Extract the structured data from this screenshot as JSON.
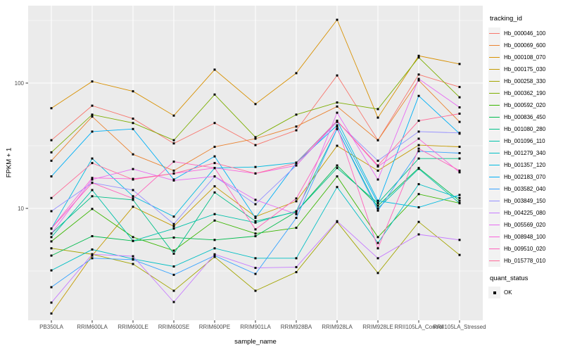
{
  "chart_data": {
    "type": "line",
    "title": "",
    "xlabel": "sample_name",
    "ylabel": "FPKM + 1",
    "y_scale": "log10",
    "ylim": [
      1.3,
      415
    ],
    "y_tick_labels": [
      "100",
      "10"
    ],
    "y_tick_values": [
      100,
      10
    ],
    "grid": true,
    "legend_position": "right",
    "categories": [
      "PB350LA",
      "RRIM600LA",
      "RRIM600LE",
      "RRIM600SE",
      "RRIM600PE",
      "RRIM901LA",
      "RRIM928BA",
      "RRIM928LA",
      "RRIM928LE",
      "RRII105LA_Control",
      "RRII105LA_Stressed"
    ],
    "series": [
      {
        "name": "Hb_000046_100",
        "color": "#F8766D",
        "values": [
          35,
          66,
          52,
          33,
          48,
          32,
          42,
          115,
          35,
          117,
          93
        ]
      },
      {
        "name": "Hb_000069_600",
        "color": "#EA8331",
        "values": [
          24,
          54,
          27,
          20,
          31,
          36,
          45,
          65,
          35,
          105,
          49
        ]
      },
      {
        "name": "Hb_000108_070",
        "color": "#D89000",
        "values": [
          63,
          103,
          86,
          55,
          128,
          68,
          120,
          320,
          53,
          165,
          142
        ]
      },
      {
        "name": "Hb_000175_030",
        "color": "#C49A00",
        "values": [
          1.45,
          4.2,
          10.3,
          7.2,
          15,
          8.6,
          11.4,
          31.6,
          20,
          32,
          31
        ]
      },
      {
        "name": "Hb_000258_330",
        "color": "#A3A500",
        "values": [
          4.8,
          4.3,
          3.6,
          2.2,
          4.1,
          2.2,
          3.1,
          7.8,
          3.05,
          7.8,
          4.25
        ]
      },
      {
        "name": "Hb_000362_190",
        "color": "#7CAE00",
        "values": [
          28,
          56,
          48,
          35,
          81,
          37,
          56,
          70,
          62,
          160,
          77
        ]
      },
      {
        "name": "Hb_000592_020",
        "color": "#39B600",
        "values": [
          5.45,
          9.9,
          5.9,
          4.6,
          8,
          6.3,
          7,
          18,
          5.9,
          13,
          11
        ]
      },
      {
        "name": "Hb_000836_450",
        "color": "#00BB4E",
        "values": [
          4.2,
          6,
          5.5,
          5.85,
          5.6,
          6,
          9.4,
          22,
          10.5,
          21,
          11.5
        ]
      },
      {
        "name": "Hb_001080_280",
        "color": "#00C087",
        "values": [
          6.3,
          12.5,
          11.7,
          4.35,
          13.4,
          7.9,
          9.4,
          21,
          11,
          25,
          25
        ]
      },
      {
        "name": "Hb_001096_110",
        "color": "#00C1A9",
        "values": [
          5.9,
          14,
          5.5,
          6.9,
          9,
          7.7,
          9.5,
          43,
          10,
          20.7,
          11
        ]
      },
      {
        "name": "Hb_001279_340",
        "color": "#00BFC4",
        "values": [
          3.2,
          4.7,
          3.95,
          3.44,
          4.8,
          4,
          4,
          14.8,
          5.3,
          15.6,
          12.1
        ]
      },
      {
        "name": "Hb_001357_120",
        "color": "#00BAE0",
        "values": [
          6.9,
          25,
          12.5,
          8.6,
          21,
          21.4,
          23.2,
          50,
          11.5,
          10.2,
          12.8
        ]
      },
      {
        "name": "Hb_002183_070",
        "color": "#00B0F6",
        "values": [
          18,
          41,
          43,
          17,
          26,
          8.4,
          23,
          46,
          11,
          79,
          39.5
        ]
      },
      {
        "name": "Hb_003582_040",
        "color": "#35A2FF",
        "values": [
          2.35,
          4,
          3.9,
          2.95,
          4.2,
          3,
          8.4,
          43,
          9.6,
          28.6,
          27.6
        ]
      },
      {
        "name": "Hb_003849_150",
        "color": "#9590FF",
        "values": [
          9.5,
          16,
          14,
          7.5,
          18,
          10.8,
          22,
          49,
          24,
          41,
          40
        ]
      },
      {
        "name": "Hb_004225_080",
        "color": "#C77CFF",
        "values": [
          1.77,
          4.3,
          4.15,
          1.79,
          4.3,
          3.35,
          3.4,
          7.9,
          4,
          6.2,
          5.6
        ]
      },
      {
        "name": "Hb_005569_020",
        "color": "#E76BF3",
        "values": [
          6.3,
          17,
          20.6,
          16.7,
          18,
          11.7,
          9,
          58,
          17,
          108,
          64
        ]
      },
      {
        "name": "Hb_008948_100",
        "color": "#FA62DB",
        "values": [
          6.9,
          17.5,
          17.2,
          19,
          21,
          19,
          22,
          50,
          21.6,
          36,
          19.4
        ]
      },
      {
        "name": "Hb_009510_020",
        "color": "#FF62BC",
        "values": [
          6.9,
          16,
          12,
          23.6,
          21,
          6.8,
          12,
          45,
          4.8,
          30,
          20
        ]
      },
      {
        "name": "Hb_015778_010",
        "color": "#FF6A98",
        "values": [
          12.1,
          23,
          17,
          19,
          23,
          19,
          23,
          50,
          22,
          50,
          57
        ]
      }
    ],
    "point_marker": {
      "shape": "square",
      "color": "#000000"
    }
  },
  "legend": {
    "tracking_id_title": "tracking_id",
    "quant_status_title": "quant_status",
    "quant_items": [
      {
        "label": "OK",
        "marker": "black-square"
      }
    ]
  },
  "colors": {
    "panel_background": "#EBEBEB",
    "grid": "#FFFFFF",
    "axis_text": "#4D4D4D",
    "tick_mark": "#333333",
    "legend_key_background": "#F2F2F2",
    "point": "#000000"
  }
}
